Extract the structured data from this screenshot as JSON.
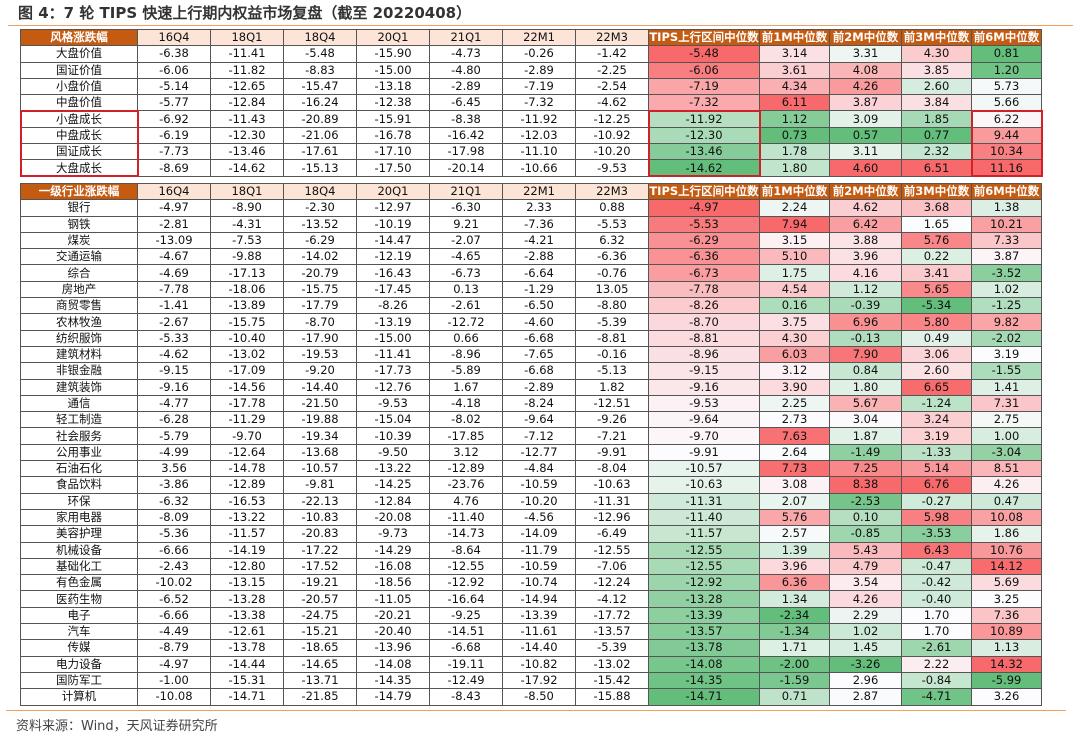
{
  "title": "图 4：7 轮 TIPS 快速上行期内权益市场复盘（截至 20220408）",
  "source": "资料来源：Wind，天风证券研究所",
  "colors": {
    "header_dark": "#C55A11",
    "header_peach": "#FCE4D6",
    "low": "#63BE7B",
    "mid": "#FCFCFF",
    "high": "#F8696B",
    "highlight_box": "#D0202A"
  },
  "columns": [
    "16Q4",
    "18Q1",
    "18Q4",
    "20Q1",
    "21Q1",
    "22M1",
    "22M3",
    "TIPS上行区间中位数",
    "前1M中位数",
    "前2M中位数",
    "前3M中位数",
    "前6M中位数"
  ],
  "style_table": {
    "header": "风格涨跌幅",
    "highlighted_rows": [
      "小盘成长",
      "中盘成长",
      "国证成长",
      "大盘成长"
    ],
    "rows": [
      {
        "name": "大盘价值",
        "values": [
          "-6.38",
          "-11.41",
          "-5.48",
          "-15.90",
          "-4.73",
          "-0.26",
          "-1.42",
          "-5.48",
          "3.14",
          "3.31",
          "4.30",
          "0.81"
        ]
      },
      {
        "name": "国证价值",
        "values": [
          "-6.06",
          "-11.82",
          "-8.83",
          "-15.00",
          "-4.80",
          "-2.89",
          "-2.25",
          "-6.06",
          "3.61",
          "4.08",
          "3.85",
          "1.20"
        ]
      },
      {
        "name": "小盘价值",
        "values": [
          "-5.14",
          "-12.65",
          "-15.47",
          "-13.18",
          "-2.89",
          "-7.19",
          "-2.54",
          "-7.19",
          "4.34",
          "4.26",
          "2.60",
          "5.73"
        ]
      },
      {
        "name": "中盘价值",
        "values": [
          "-5.77",
          "-12.84",
          "-16.24",
          "-12.38",
          "-6.45",
          "-7.32",
          "-4.62",
          "-7.32",
          "6.11",
          "3.87",
          "3.84",
          "5.66"
        ]
      },
      {
        "name": "小盘成长",
        "values": [
          "-6.92",
          "-11.43",
          "-20.89",
          "-15.91",
          "-8.38",
          "-11.92",
          "-12.25",
          "-11.92",
          "1.12",
          "3.09",
          "1.85",
          "6.22"
        ]
      },
      {
        "name": "中盘成长",
        "values": [
          "-6.19",
          "-12.30",
          "-21.06",
          "-16.78",
          "-16.42",
          "-12.03",
          "-10.92",
          "-12.30",
          "0.73",
          "0.57",
          "0.77",
          "9.44"
        ]
      },
      {
        "name": "国证成长",
        "values": [
          "-7.73",
          "-13.46",
          "-17.61",
          "-17.10",
          "-17.98",
          "-11.10",
          "-10.20",
          "-13.46",
          "1.78",
          "3.11",
          "2.32",
          "10.34"
        ]
      },
      {
        "name": "大盘成长",
        "values": [
          "-8.69",
          "-14.62",
          "-15.13",
          "-17.50",
          "-20.14",
          "-10.66",
          "-9.53",
          "-14.62",
          "1.80",
          "4.60",
          "6.51",
          "11.16"
        ]
      }
    ]
  },
  "industry_table": {
    "header": "一级行业涨跌幅",
    "rows": [
      {
        "name": "银行",
        "values": [
          "-4.97",
          "-8.90",
          "-2.30",
          "-12.97",
          "-6.30",
          "2.33",
          "0.88",
          "-4.97",
          "2.24",
          "4.62",
          "3.68",
          "1.38"
        ]
      },
      {
        "name": "钢铁",
        "values": [
          "-2.81",
          "-4.31",
          "-13.52",
          "-10.19",
          "9.21",
          "-7.36",
          "-5.53",
          "-5.53",
          "7.94",
          "6.42",
          "1.65",
          "10.21"
        ]
      },
      {
        "name": "煤炭",
        "values": [
          "-13.09",
          "-7.53",
          "-6.29",
          "-14.47",
          "-2.07",
          "-4.21",
          "6.32",
          "-6.29",
          "3.15",
          "3.88",
          "5.76",
          "7.33"
        ]
      },
      {
        "name": "交通运输",
        "values": [
          "-4.67",
          "-9.88",
          "-14.02",
          "-12.19",
          "-4.65",
          "-2.88",
          "-6.36",
          "-6.36",
          "5.10",
          "3.96",
          "0.22",
          "3.87"
        ]
      },
      {
        "name": "综合",
        "values": [
          "-4.69",
          "-17.13",
          "-20.79",
          "-16.43",
          "-6.73",
          "-6.64",
          "-0.76",
          "-6.73",
          "1.75",
          "4.16",
          "3.41",
          "-3.52"
        ]
      },
      {
        "name": "房地产",
        "values": [
          "-7.78",
          "-18.06",
          "-15.75",
          "-17.45",
          "0.13",
          "-1.29",
          "13.05",
          "-7.78",
          "4.54",
          "1.12",
          "5.65",
          "1.02"
        ]
      },
      {
        "name": "商贸零售",
        "values": [
          "-1.41",
          "-13.89",
          "-17.79",
          "-8.26",
          "-2.61",
          "-6.50",
          "-8.80",
          "-8.26",
          "0.16",
          "-0.39",
          "-5.34",
          "-1.25"
        ]
      },
      {
        "name": "农林牧渔",
        "values": [
          "-2.67",
          "-15.75",
          "-8.70",
          "-13.19",
          "-12.72",
          "-4.60",
          "-5.39",
          "-8.70",
          "3.75",
          "6.96",
          "5.80",
          "9.82"
        ]
      },
      {
        "name": "纺织服饰",
        "values": [
          "-5.33",
          "-10.40",
          "-17.90",
          "-15.00",
          "0.66",
          "-6.68",
          "-8.81",
          "-8.81",
          "4.30",
          "-0.13",
          "0.49",
          "-2.02"
        ]
      },
      {
        "name": "建筑材料",
        "values": [
          "-4.62",
          "-13.02",
          "-19.53",
          "-11.41",
          "-8.96",
          "-7.65",
          "-0.16",
          "-8.96",
          "6.03",
          "7.90",
          "3.06",
          "3.19"
        ]
      },
      {
        "name": "非银金融",
        "values": [
          "-9.15",
          "-17.09",
          "-9.20",
          "-17.73",
          "-5.89",
          "-6.68",
          "-5.13",
          "-9.15",
          "3.12",
          "0.84",
          "2.60",
          "-1.55"
        ]
      },
      {
        "name": "建筑装饰",
        "values": [
          "-9.16",
          "-14.56",
          "-14.40",
          "-12.76",
          "1.67",
          "-2.89",
          "1.82",
          "-9.16",
          "3.90",
          "1.80",
          "6.65",
          "1.41"
        ]
      },
      {
        "name": "通信",
        "values": [
          "-4.77",
          "-17.78",
          "-21.50",
          "-9.53",
          "-4.18",
          "-8.24",
          "-12.51",
          "-9.53",
          "2.25",
          "5.67",
          "-1.24",
          "7.31"
        ]
      },
      {
        "name": "轻工制造",
        "values": [
          "-6.28",
          "-11.29",
          "-19.88",
          "-15.04",
          "-8.02",
          "-9.64",
          "-9.26",
          "-9.64",
          "2.73",
          "3.04",
          "3.24",
          "2.75"
        ]
      },
      {
        "name": "社会服务",
        "values": [
          "-5.79",
          "-9.70",
          "-19.34",
          "-10.39",
          "-17.85",
          "-7.12",
          "-7.21",
          "-9.70",
          "7.63",
          "1.87",
          "3.19",
          "1.00"
        ]
      },
      {
        "name": "公用事业",
        "values": [
          "-4.99",
          "-12.64",
          "-13.68",
          "-9.50",
          "3.12",
          "-12.77",
          "-9.91",
          "-9.91",
          "2.64",
          "-1.49",
          "-1.33",
          "-3.04"
        ]
      },
      {
        "name": "石油石化",
        "values": [
          "3.56",
          "-14.78",
          "-10.57",
          "-13.22",
          "-12.89",
          "-4.84",
          "-8.04",
          "-10.57",
          "7.73",
          "7.25",
          "5.14",
          "8.51"
        ]
      },
      {
        "name": "食品饮料",
        "values": [
          "-3.86",
          "-12.89",
          "-9.81",
          "-14.25",
          "-23.76",
          "-10.59",
          "-10.63",
          "-10.63",
          "3.08",
          "8.38",
          "6.76",
          "4.26"
        ]
      },
      {
        "name": "环保",
        "values": [
          "-6.32",
          "-16.53",
          "-22.13",
          "-12.84",
          "4.76",
          "-10.20",
          "-11.31",
          "-11.31",
          "2.07",
          "-2.53",
          "-0.27",
          "0.47"
        ]
      },
      {
        "name": "家用电器",
        "values": [
          "-8.09",
          "-13.22",
          "-10.83",
          "-20.08",
          "-11.40",
          "-4.56",
          "-12.96",
          "-11.40",
          "5.76",
          "0.10",
          "5.98",
          "10.08"
        ]
      },
      {
        "name": "美容护理",
        "values": [
          "-5.36",
          "-11.57",
          "-20.83",
          "-9.73",
          "-14.73",
          "-14.09",
          "-6.49",
          "-11.57",
          "2.57",
          "-0.85",
          "-3.53",
          "1.86"
        ]
      },
      {
        "name": "机械设备",
        "values": [
          "-6.66",
          "-14.19",
          "-17.22",
          "-14.29",
          "-8.64",
          "-11.79",
          "-12.55",
          "-12.55",
          "1.39",
          "5.43",
          "6.43",
          "10.76"
        ]
      },
      {
        "name": "基础化工",
        "values": [
          "-2.43",
          "-12.80",
          "-17.52",
          "-16.08",
          "-12.55",
          "-10.59",
          "-7.06",
          "-12.55",
          "3.96",
          "4.79",
          "-0.47",
          "14.12"
        ]
      },
      {
        "name": "有色金属",
        "values": [
          "-10.02",
          "-13.15",
          "-19.21",
          "-18.56",
          "-12.92",
          "-10.74",
          "-12.24",
          "-12.92",
          "6.36",
          "3.54",
          "-0.42",
          "5.69"
        ]
      },
      {
        "name": "医药生物",
        "values": [
          "-6.52",
          "-13.28",
          "-20.57",
          "-11.05",
          "-16.64",
          "-14.94",
          "-4.12",
          "-13.28",
          "1.34",
          "4.26",
          "-0.40",
          "3.25"
        ]
      },
      {
        "name": "电子",
        "values": [
          "-6.66",
          "-13.38",
          "-24.75",
          "-20.21",
          "-9.25",
          "-13.39",
          "-17.72",
          "-13.39",
          "-2.34",
          "2.29",
          "1.70",
          "7.36"
        ]
      },
      {
        "name": "汽车",
        "values": [
          "-4.49",
          "-12.61",
          "-15.21",
          "-20.40",
          "-14.51",
          "-11.61",
          "-13.57",
          "-13.57",
          "-1.34",
          "1.02",
          "1.70",
          "10.89"
        ]
      },
      {
        "name": "传媒",
        "values": [
          "-8.79",
          "-13.78",
          "-18.65",
          "-13.96",
          "-6.68",
          "-14.40",
          "-5.39",
          "-13.78",
          "1.71",
          "1.45",
          "-2.61",
          "1.13"
        ]
      },
      {
        "name": "电力设备",
        "values": [
          "-4.97",
          "-14.44",
          "-14.65",
          "-14.08",
          "-19.11",
          "-10.82",
          "-13.02",
          "-14.08",
          "-2.00",
          "-3.26",
          "2.22",
          "14.32"
        ]
      },
      {
        "name": "国防军工",
        "values": [
          "-1.00",
          "-15.31",
          "-13.71",
          "-14.35",
          "-12.49",
          "-17.92",
          "-15.42",
          "-14.35",
          "-1.59",
          "2.96",
          "-0.84",
          "-5.99"
        ]
      },
      {
        "name": "计算机",
        "values": [
          "-10.08",
          "-14.71",
          "-21.85",
          "-14.79",
          "-8.43",
          "-8.50",
          "-15.88",
          "-14.71",
          "0.71",
          "2.87",
          "-4.71",
          "3.26"
        ]
      }
    ]
  }
}
